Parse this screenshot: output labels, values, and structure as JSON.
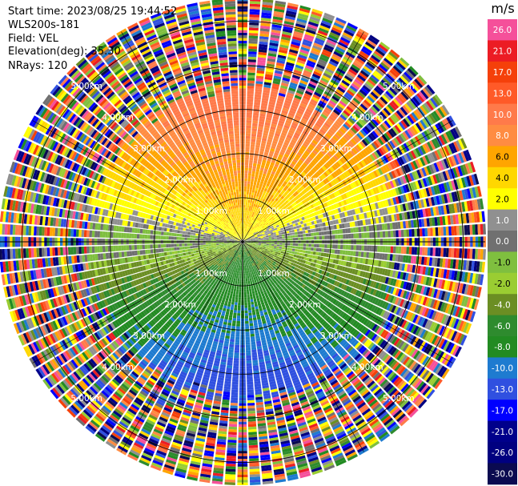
{
  "header": {
    "start_time": "Start time: 2023/08/25 19:44:52",
    "instrument": "WLS200s-181",
    "field": "Field: VEL",
    "elevation": "Elevation(deg): 35.30",
    "nrays": "NRays: 120"
  },
  "chart_data": {
    "type": "heatmap",
    "projection": "polar-ppi",
    "nrays": 120,
    "ring_labels": [
      "1.00km",
      "2.00km",
      "3.00km",
      "4.00km",
      "5.00km"
    ],
    "rings_km": [
      1,
      2,
      3,
      4,
      5
    ],
    "max_range_km": 5.5,
    "colorbar": {
      "title": "m/s",
      "ticks": [
        "26.0",
        "21.0",
        "17.0",
        "13.0",
        "10.0",
        "8.0",
        "6.0",
        "4.0",
        "2.0",
        "1.0",
        "0.0",
        "-1.0",
        "-2.0",
        "-4.0",
        "-6.0",
        "-8.0",
        "-10.0",
        "-13.0",
        "-17.0",
        "-21.0",
        "-26.0",
        "-30.0"
      ],
      "colors": [
        "#f5509a",
        "#ec1c24",
        "#f5400a",
        "#ff5a28",
        "#ff7a4a",
        "#ff8c42",
        "#ffa500",
        "#ffd700",
        "#ffff00",
        "#909090",
        "#707070",
        "#7fbf3f",
        "#9acd32",
        "#6b8e23",
        "#2e8b2e",
        "#228b22",
        "#1e7bd0",
        "#3050e0",
        "#0000ff",
        "#00008b",
        "#000080",
        "#0a0a50"
      ]
    },
    "velocity_pattern": "positive (toward red/orange) in the northern half, negative (toward green/blue) in the southern half, near-zero grey band along the east-west axis; noisy random multi-color speckle beyond ~3.3 km"
  }
}
